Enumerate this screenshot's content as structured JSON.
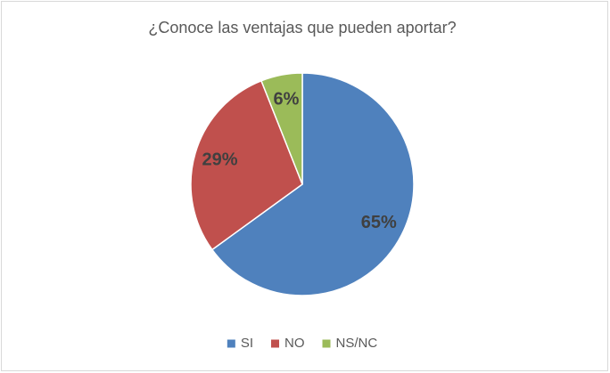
{
  "chart_data": {
    "type": "pie",
    "title": "¿Conoce las ventajas que pueden aportar?",
    "categories": [
      "SI",
      "NO",
      "NS/NC"
    ],
    "values": [
      65,
      29,
      6
    ],
    "value_labels": [
      "65%",
      "29%",
      "6%"
    ],
    "colors": [
      "#4f81bd",
      "#c0504d",
      "#9bbb59"
    ],
    "legend": "bottom"
  }
}
